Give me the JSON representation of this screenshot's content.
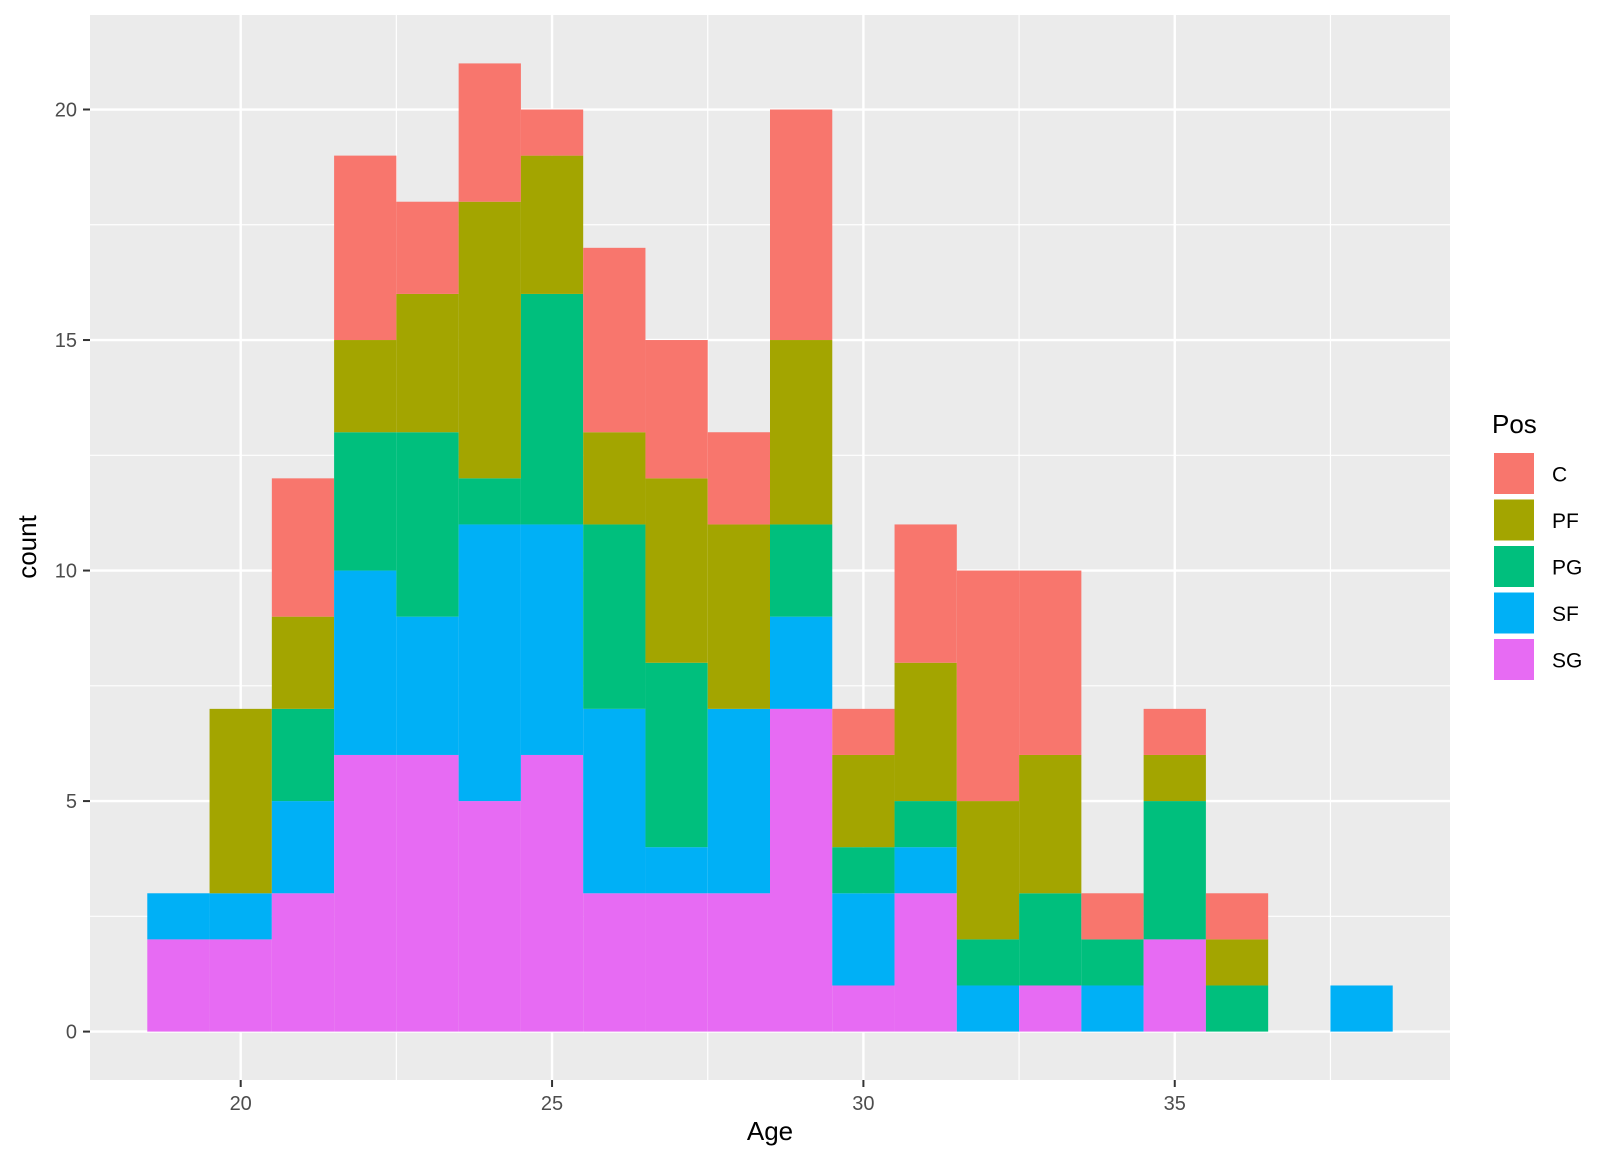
{
  "chart_data": {
    "type": "bar",
    "stacked": true,
    "title": "",
    "xlabel": "Age",
    "ylabel": "count",
    "xlim": [
      17.58,
      39.42
    ],
    "ylim": [
      -1.05,
      22.05
    ],
    "x_ticks": [
      20,
      25,
      30,
      35
    ],
    "y_ticks": [
      0,
      5,
      10,
      15,
      20
    ],
    "x_tick_labels": [
      "20",
      "25",
      "30",
      "35"
    ],
    "y_tick_labels": [
      "0",
      "5",
      "10",
      "15",
      "20"
    ],
    "grid": true,
    "legend_position": "right",
    "legend_title": "Pos",
    "bin_width": 1,
    "bins": [
      19,
      20,
      21,
      22,
      23,
      24,
      25,
      26,
      27,
      28,
      29,
      30,
      31,
      32,
      33,
      34,
      35,
      36,
      37,
      38
    ],
    "series": [
      {
        "name": "SG",
        "color": "#E76BF3",
        "values": [
          2,
          2,
          3,
          6,
          6,
          5,
          6,
          3,
          3,
          3,
          7,
          1,
          3,
          0,
          1,
          0,
          2,
          0,
          0,
          0
        ]
      },
      {
        "name": "SF",
        "color": "#00B0F6",
        "values": [
          1,
          1,
          2,
          4,
          3,
          6,
          5,
          4,
          1,
          4,
          2,
          2,
          1,
          1,
          0,
          1,
          0,
          0,
          0,
          1
        ]
      },
      {
        "name": "PG",
        "color": "#00BF7D",
        "values": [
          0,
          0,
          2,
          3,
          4,
          1,
          5,
          4,
          4,
          0,
          2,
          1,
          1,
          1,
          2,
          1,
          3,
          1,
          0,
          0
        ]
      },
      {
        "name": "PF",
        "color": "#A3A500",
        "values": [
          0,
          4,
          2,
          2,
          3,
          6,
          3,
          2,
          4,
          4,
          4,
          2,
          3,
          3,
          3,
          0,
          1,
          1,
          0,
          0
        ]
      },
      {
        "name": "C",
        "color": "#F8766D",
        "values": [
          0,
          0,
          3,
          4,
          2,
          3,
          1,
          4,
          3,
          2,
          5,
          1,
          3,
          5,
          4,
          1,
          1,
          1,
          0,
          0
        ]
      }
    ],
    "legend_order": [
      "C",
      "PF",
      "PG",
      "SF",
      "SG"
    ],
    "panel_color": "#EBEBEB",
    "grid_color": "#FFFFFF"
  }
}
